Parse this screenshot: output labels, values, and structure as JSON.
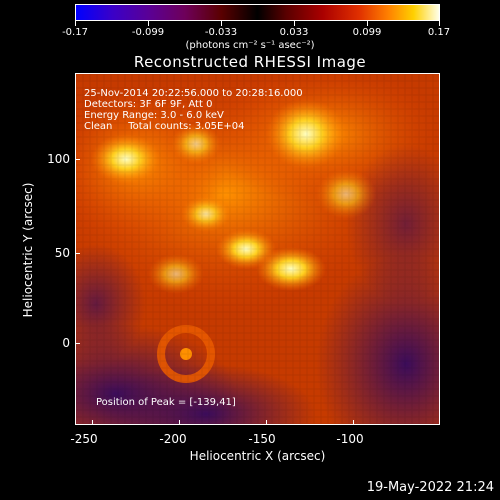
{
  "colorbar": {
    "ticks": [
      "-0.17",
      "-0.099",
      "-0.033",
      "0.033",
      "0.099",
      "0.17"
    ],
    "units": "(photons cm⁻² s⁻¹ asec⁻²)"
  },
  "title": "Reconstructed RHESSI Image",
  "info": {
    "line1": "25-Nov-2014 20:22:56.000 to 20:28:16.000",
    "line2": "Detectors: 3F 6F 9F, Att 0",
    "line3": "Energy Range: 3.0 - 6.0 keV",
    "line4": "Clean     Total counts: 3.05E+04",
    "peak": "Position of Peak = [-139,41]"
  },
  "axes": {
    "xlabel": "Heliocentric X (arcsec)",
    "ylabel": "Heliocentric Y (arcsec)",
    "xticks": [
      "-250",
      "-200",
      "-150",
      "-100"
    ],
    "yticks": [
      "100",
      "50",
      "0"
    ]
  },
  "timestamp": "19-May-2022 21:24",
  "colors": {
    "background": "#000000",
    "foreground": "#ffffff"
  }
}
